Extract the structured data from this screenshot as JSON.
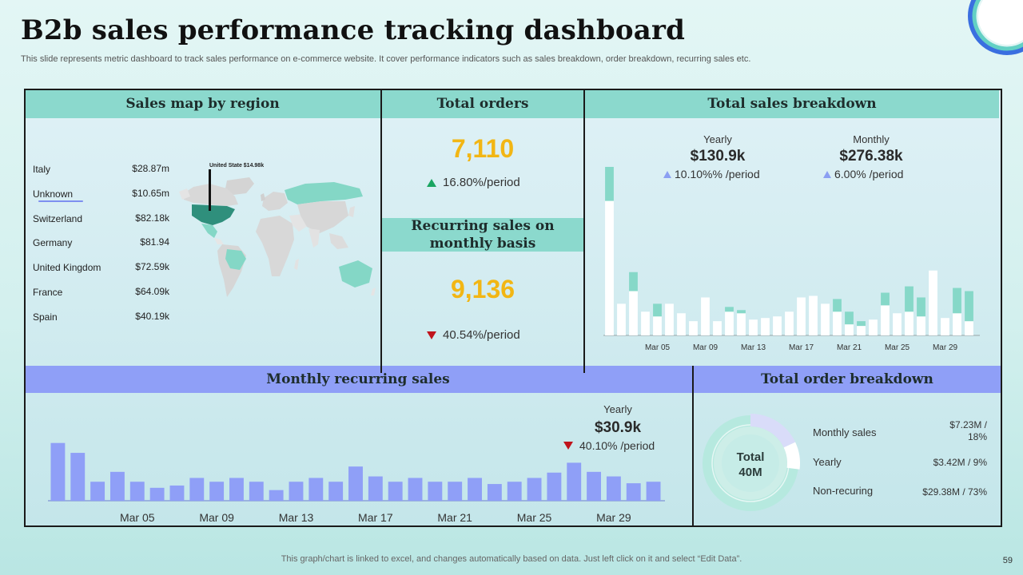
{
  "page": {
    "title": "B2b sales performance tracking dashboard",
    "subtitle": "This slide represents metric dashboard to track sales performance on e-commerce website. It cover performance indicators such as sales breakdown, order breakdown, recurring sales etc.",
    "footer": "This graph/chart is linked to excel,  and changes automatically based on data. Just left click on it and select “Edit Data”.",
    "page_number": "59"
  },
  "sales_map": {
    "header": "Sales map by region",
    "map_label": "United State $14.98k",
    "regions": [
      {
        "name": "Italy",
        "value": "$28.87m"
      },
      {
        "name": "Unknown",
        "value": "$10.65m"
      },
      {
        "name": "Switzerland",
        "value": "$82.18k"
      },
      {
        "name": "Germany",
        "value": "$81.94"
      },
      {
        "name": "United Kingdom",
        "value": "$72.59k"
      },
      {
        "name": "France",
        "value": "$64.09k"
      },
      {
        "name": "Spain",
        "value": "$40.19k"
      }
    ]
  },
  "total_orders": {
    "header": "Total orders",
    "value": "7,110",
    "period": "16.80%/period"
  },
  "recurring_sales": {
    "header": "Recurring sales on monthly basis",
    "value": "9,136",
    "period": "40.54%/period"
  },
  "sales_breakdown": {
    "header": "Total sales breakdown",
    "yearly_label": "Yearly",
    "yearly_value": "$130.9k",
    "yearly_period": "10.10%% /period",
    "monthly_label": "Monthly",
    "monthly_value": "$276.38k",
    "monthly_period": "6.00% /period"
  },
  "monthly_recurring": {
    "header": "Monthly recurring sales",
    "yearly_label": "Yearly",
    "yearly_value": "$30.9k",
    "yearly_period": "40.10% /period"
  },
  "order_breakdown": {
    "header": "Total order breakdown",
    "center_line1": "Total",
    "center_line2": "40M",
    "items": [
      {
        "name": "Monthly sales",
        "value": "$7.23M /\n18%"
      },
      {
        "name": "Yearly",
        "value": "$3.42M  / 9%"
      },
      {
        "name": "Non-recuring",
        "value": "$29.38M / 73%"
      }
    ]
  },
  "colors": {
    "teal": "#8bd9cd",
    "teal_bar": "#86d8c8",
    "purple": "#8f9ff7",
    "yellow": "#f2b614",
    "donut_track": "#c7ede6",
    "donut_monthly": "#d9dcf9"
  },
  "chart_data": [
    {
      "type": "bar",
      "name": "total-sales-breakdown",
      "stacked": true,
      "categories": [
        "Mar 01",
        "Mar 02",
        "Mar 03",
        "Mar 04",
        "Mar 05",
        "Mar 06",
        "Mar 07",
        "Mar 08",
        "Mar 09",
        "Mar 10",
        "Mar 11",
        "Mar 12",
        "Mar 13",
        "Mar 14",
        "Mar 15",
        "Mar 16",
        "Mar 17",
        "Mar 18",
        "Mar 19",
        "Mar 20",
        "Mar 21",
        "Mar 22",
        "Mar 23",
        "Mar 24",
        "Mar 25",
        "Mar 26",
        "Mar 27",
        "Mar 28",
        "Mar 29",
        "Mar 30",
        "Mar 31"
      ],
      "tick_labels": [
        "Mar 05",
        "Mar 09",
        "Mar 13",
        "Mar 17",
        "Mar 21",
        "Mar 25",
        "Mar 29"
      ],
      "series": [
        {
          "name": "Base",
          "color": "#ffffff",
          "values": [
            170,
            40,
            56,
            30,
            24,
            40,
            28,
            18,
            48,
            18,
            30,
            28,
            20,
            22,
            24,
            30,
            48,
            50,
            40,
            30,
            14,
            12,
            20,
            38,
            28,
            30,
            24,
            82,
            22,
            28,
            18
          ]
        },
        {
          "name": "Recurring",
          "color": "#86d8c8",
          "values": [
            43,
            0,
            24,
            0,
            16,
            0,
            0,
            0,
            0,
            0,
            6,
            4,
            0,
            0,
            0,
            0,
            0,
            0,
            0,
            16,
            16,
            6,
            0,
            16,
            0,
            32,
            24,
            0,
            0,
            32,
            38
          ]
        }
      ],
      "ylim": [
        0,
        215
      ],
      "grid": false
    },
    {
      "type": "bar",
      "name": "monthly-recurring-sales",
      "categories": [
        "Mar 01",
        "Mar 02",
        "Mar 03",
        "Mar 04",
        "Mar 05",
        "Mar 06",
        "Mar 07",
        "Mar 08",
        "Mar 09",
        "Mar 10",
        "Mar 11",
        "Mar 12",
        "Mar 13",
        "Mar 14",
        "Mar 15",
        "Mar 16",
        "Mar 17",
        "Mar 18",
        "Mar 19",
        "Mar 20",
        "Mar 21",
        "Mar 22",
        "Mar 23",
        "Mar 24",
        "Mar 25",
        "Mar 26",
        "Mar 27",
        "Mar 28",
        "Mar 29",
        "Mar 30",
        "Mar 31"
      ],
      "tick_labels": [
        "Mar 05",
        "Mar 09",
        "Mar 13",
        "Mar 17",
        "Mar 21",
        "Mar 25",
        "Mar 29"
      ],
      "series": [
        {
          "name": "Recurring sales",
          "color": "#8f9ff7",
          "values": [
            76,
            63,
            25,
            38,
            25,
            17,
            20,
            30,
            25,
            30,
            25,
            14,
            25,
            30,
            25,
            45,
            32,
            25,
            30,
            25,
            25,
            30,
            22,
            25,
            30,
            37,
            50,
            38,
            32,
            23,
            25
          ]
        }
      ],
      "ylim": [
        0,
        80
      ],
      "grid": false
    },
    {
      "type": "pie",
      "name": "total-order-breakdown",
      "donut": true,
      "labels": [
        "Monthly sales",
        "Yearly",
        "Non-recuring"
      ],
      "values": [
        18,
        9,
        73
      ],
      "units": "%",
      "colors": [
        "#d9dcf9",
        "#ffffff",
        "#c7ede6"
      ]
    }
  ]
}
